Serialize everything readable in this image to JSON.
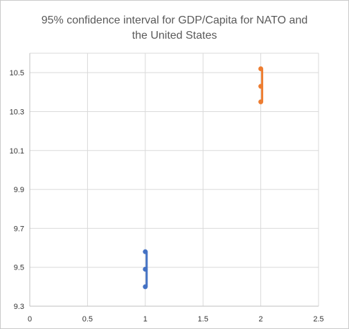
{
  "chart_data": {
    "type": "scatter",
    "title_lines": [
      "95% confidence interval for GDP/Capita for NATO and",
      "the United States"
    ],
    "xlabel": "",
    "ylabel": "",
    "xlim": [
      0,
      2.5
    ],
    "ylim": [
      9.3,
      10.6
    ],
    "xticks": [
      0,
      0.5,
      1,
      1.5,
      2,
      2.5
    ],
    "xtick_labels": [
      "0",
      "0.5",
      "1",
      "1.5",
      "2",
      "2.5"
    ],
    "yticks": [
      9.3,
      9.5,
      9.7,
      9.9,
      10.1,
      10.3,
      10.5
    ],
    "ytick_labels": [
      "9.3",
      "9.5",
      "9.7",
      "9.9",
      "10.1",
      "10.3",
      "10.5"
    ],
    "grid": "vertical and horizontal",
    "legend": "none",
    "series": [
      {
        "color": "#4472c4",
        "x": 1,
        "points": [
          9.4,
          9.49,
          9.58
        ]
      },
      {
        "color": "#ed7d31",
        "x": 2,
        "points": [
          10.35,
          10.43,
          10.52
        ]
      }
    ]
  }
}
